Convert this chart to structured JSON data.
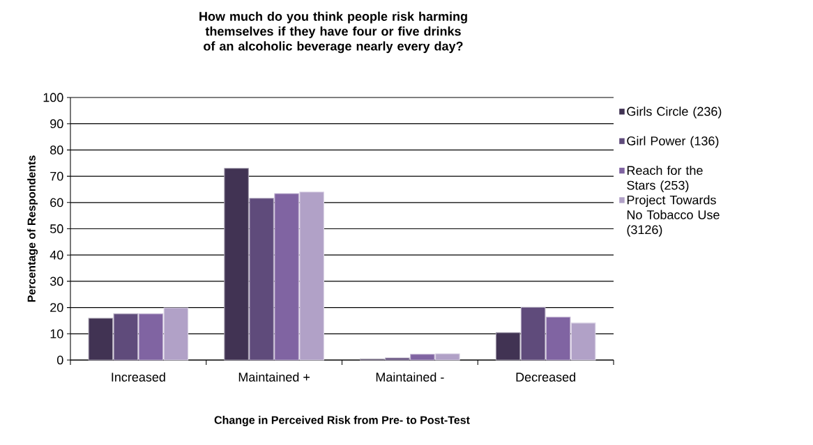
{
  "chart_data": {
    "type": "bar",
    "title": "How much do you think people risk harming themselves if they have four or five drinks of an alcoholic beverage nearly every day?",
    "xlabel": "Change in Perceived Risk from Pre- to Post-Test",
    "ylabel": "Percentage of Respondents",
    "categories": [
      "Increased",
      "Maintained +",
      "Maintained -",
      "Decreased"
    ],
    "series": [
      {
        "name": "Girls Circle (236)",
        "color": "#413353",
        "values": [
          15.9,
          73.0,
          0.4,
          10.4
        ]
      },
      {
        "name": "Girl Power (136)",
        "color": "#5f4b7b",
        "values": [
          17.6,
          61.6,
          0.8,
          20.1
        ]
      },
      {
        "name": "Reach for the Stars (253)",
        "color": "#8064a2",
        "values": [
          17.6,
          63.4,
          2.2,
          16.4
        ]
      },
      {
        "name": "Project Towards No Tobacco Use (3126)",
        "color": "#b1a1c7",
        "values": [
          19.9,
          64.0,
          2.4,
          14.1
        ]
      }
    ],
    "ylim": [
      0,
      100
    ],
    "yticks": [
      0,
      10,
      20,
      30,
      40,
      50,
      60,
      70,
      80,
      90,
      100
    ],
    "grid": "y",
    "legend": "right"
  }
}
